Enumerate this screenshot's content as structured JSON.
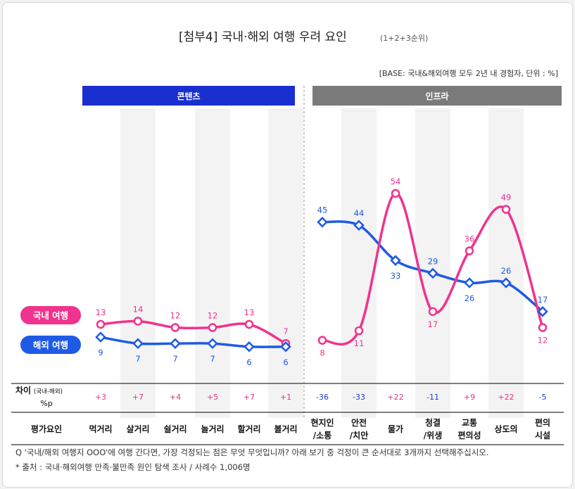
{
  "title": "[첨부4] 국내·해외 여행 우려 요인",
  "subtitle": "(1+2+3순위)",
  "base_note": "[BASE: 국내&해외여행 모두 2년 내 경험자, 단위 : %]",
  "colors": {
    "domestic": "#f0338e",
    "overseas": "#1e5ae6",
    "content_header": "#1a2fd0",
    "infra_header": "#7a7a7a",
    "neg_diff": "#1e40c8",
    "pos_diff": "#e8318a"
  },
  "chart_data": {
    "type": "line",
    "groups": [
      {
        "label": "콘텐츠",
        "categories": [
          0,
          1,
          2,
          3,
          4,
          5
        ]
      },
      {
        "label": "인프라",
        "categories": [
          6,
          7,
          8,
          9,
          10,
          11,
          12
        ]
      }
    ],
    "categories": [
      [
        "먹거리"
      ],
      [
        "살거리"
      ],
      [
        "쉴거리"
      ],
      [
        "놀거리"
      ],
      [
        "할거리"
      ],
      [
        "볼거리"
      ],
      [
        "현지인",
        "/소통"
      ],
      [
        "안전",
        "/치안"
      ],
      [
        "물가"
      ],
      [
        "청결",
        "/위생"
      ],
      [
        "교통",
        "편의성"
      ],
      [
        "상도의"
      ],
      [
        "편의",
        "시설"
      ]
    ],
    "series": [
      {
        "name": "국내 여행",
        "color": "#f0338e",
        "values": [
          13,
          14,
          12,
          12,
          13,
          7,
          8,
          11,
          54,
          17,
          36,
          49,
          12
        ]
      },
      {
        "name": "해외 여행",
        "color": "#1e5ae6",
        "values": [
          9,
          7,
          7,
          7,
          6,
          6,
          45,
          44,
          33,
          29,
          26,
          26,
          17
        ]
      }
    ],
    "differences": [
      "+3",
      "+7",
      "+4",
      "+5",
      "+7",
      "+1",
      "-36",
      "-33",
      "+22",
      "-11",
      "+9",
      "+22",
      "-5"
    ],
    "diff_label": "차이",
    "diff_label_small": "(국내-해외)",
    "diff_unit": "%p",
    "row_label": "평가요인"
  },
  "footnotes": [
    "Q '국내/해외 여행지 OOO'에 여행 간다면, 가장 걱정되는 점은 무엇 무엇입니까? 아래 보기 중 걱정이 큰 순서대로 3개까지 선택해주십시오.",
    "* 출처 : 국내·해외여행 만족·불만족 원인 탐색 조사 / 사례수 1,006명"
  ]
}
